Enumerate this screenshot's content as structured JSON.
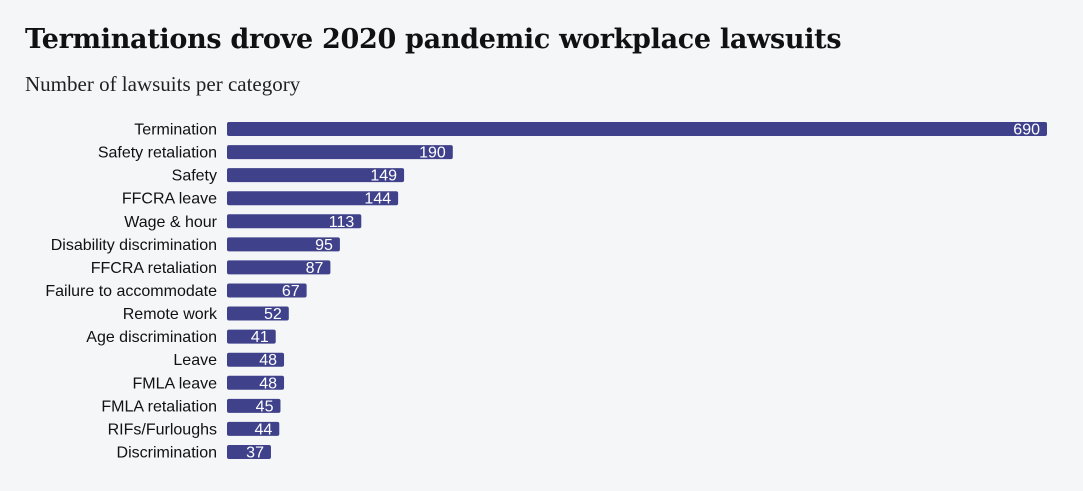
{
  "chart_data": {
    "type": "bar",
    "orientation": "horizontal",
    "title": "Terminations drove 2020 pandemic workplace lawsuits",
    "subtitle": "Number of lawsuits per category",
    "categories": [
      "Termination",
      "Safety retaliation",
      "Safety",
      "FFCRA leave",
      "Wage & hour",
      "Disability discrimination",
      "FFCRA retaliation",
      "Failure to accommodate",
      "Remote work",
      "Age discrimination",
      "Leave",
      "FMLA leave",
      "FMLA retaliation",
      "RIFs/Furloughs",
      "Discrimination"
    ],
    "values": [
      690,
      190,
      149,
      144,
      113,
      95,
      87,
      67,
      52,
      41,
      48,
      48,
      45,
      44,
      37
    ],
    "xlim": [
      0,
      690
    ],
    "grid": false,
    "bar_color": "#3f418b",
    "value_label_color": "#ffffff"
  }
}
